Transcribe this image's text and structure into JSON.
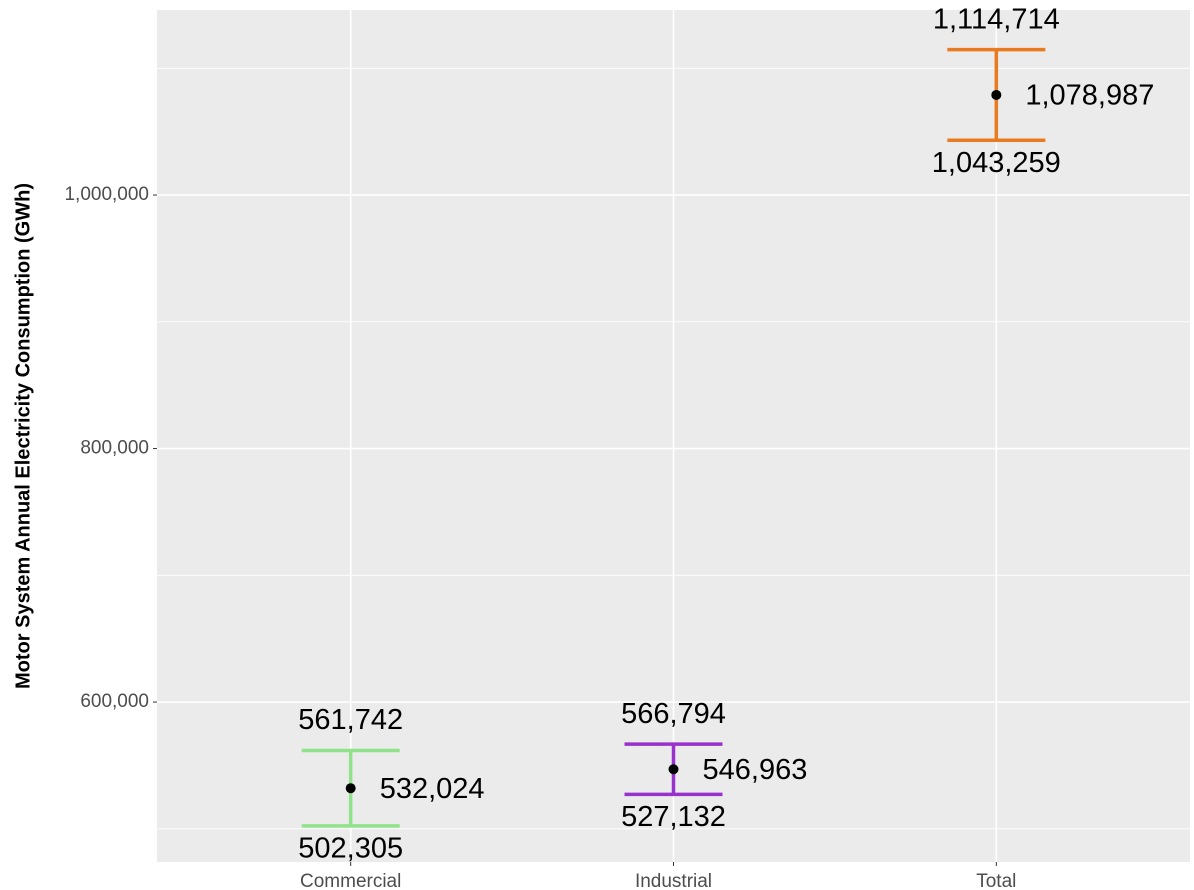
{
  "chart_data": {
    "type": "errorbar",
    "y_label": "Motor System Annual Electricity Consumption (GWh)",
    "categories": [
      "Commercial",
      "Industrial",
      "Total"
    ],
    "values": [
      532024,
      546963,
      1078987
    ],
    "value_labels": [
      "532,024",
      "546,963",
      "1,078,987"
    ],
    "lower": [
      502305,
      527132,
      1043259
    ],
    "lower_labels": [
      "502,305",
      "527,132",
      "1,043,259"
    ],
    "upper": [
      561742,
      566794,
      1114714
    ],
    "upper_labels": [
      "561,742",
      "566,794",
      "1,114,714"
    ],
    "colors": [
      "#90e38a",
      "#9932cc",
      "#e87a1f"
    ],
    "point_color": "#000000",
    "ylim": [
      473800,
      1146000
    ],
    "yticks": [
      {
        "value": 600000,
        "label": "600,000"
      },
      {
        "value": 800000,
        "label": "800,000"
      },
      {
        "value": 1000000,
        "label": "1,000,000"
      }
    ],
    "minor_yticks": [
      500000,
      700000,
      900000,
      1100000
    ],
    "grid": true
  }
}
